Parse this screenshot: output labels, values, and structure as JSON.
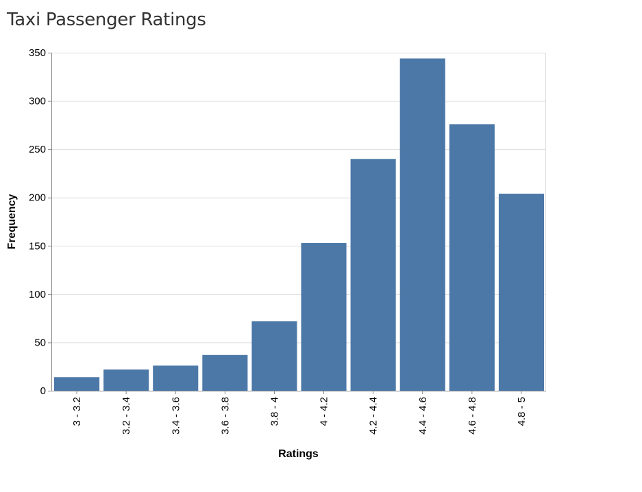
{
  "page": {
    "title": "Taxi Passenger Ratings"
  },
  "chart_data": {
    "type": "bar",
    "title": "",
    "xlabel": "Ratings",
    "ylabel": "Frequency",
    "categories": [
      "3 - 3.2",
      "3.2 - 3.4",
      "3.4 - 3.6",
      "3.6 - 3.8",
      "3.8 - 4",
      "4 - 4.2",
      "4.2 - 4.4",
      "4.4 - 4.6",
      "4.6 - 4.8",
      "4.8 - 5"
    ],
    "values": [
      14,
      22,
      26,
      37,
      72,
      153,
      240,
      344,
      276,
      204
    ],
    "ylim": [
      0,
      350
    ],
    "yticks": [
      0,
      50,
      100,
      150,
      200,
      250,
      300,
      350
    ],
    "grid": true,
    "legend": "none",
    "bar_color": "#4c78a8",
    "grid_color": "#dddddd",
    "axis_color": "#888888"
  }
}
